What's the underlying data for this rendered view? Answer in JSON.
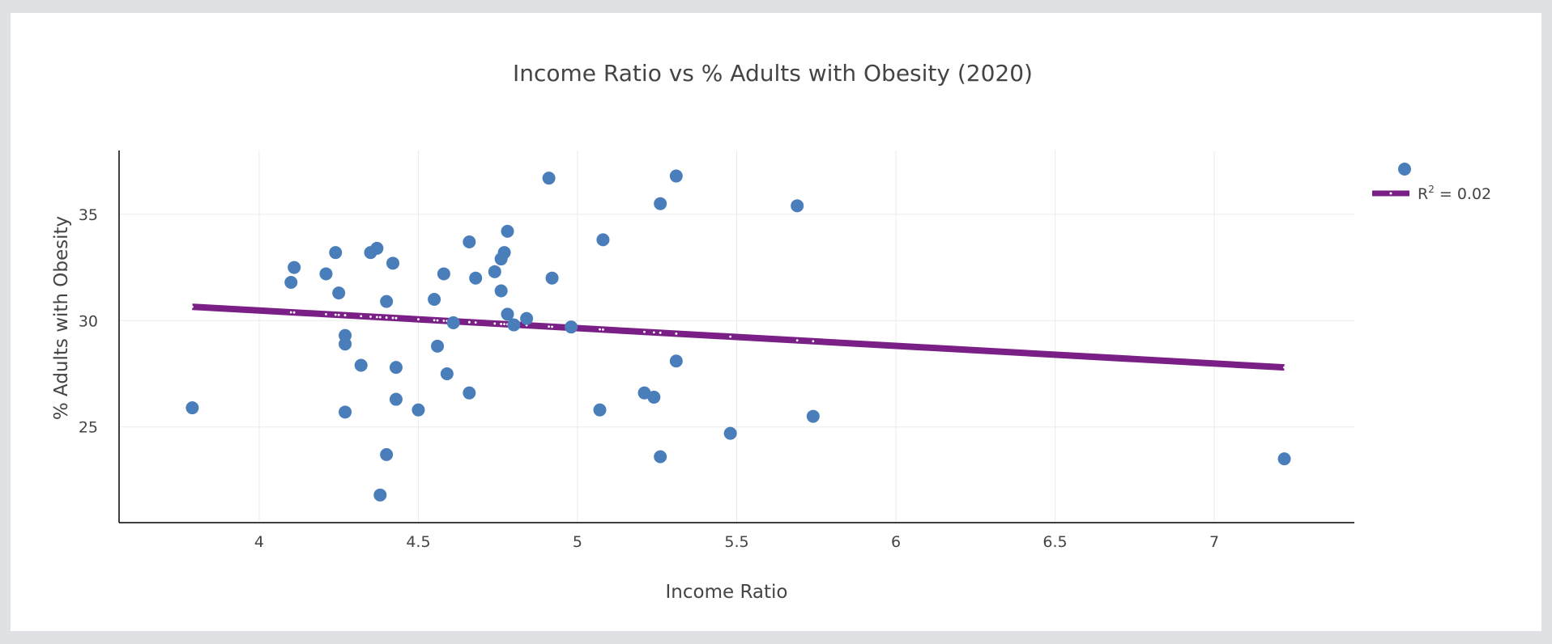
{
  "chart_data": {
    "type": "scatter",
    "title": "Income Ratio vs % Adults with Obesity (2020)",
    "xlabel": "Income Ratio",
    "ylabel": "% Adults with Obesity",
    "xlim": [
      3.56,
      7.44
    ],
    "ylim": [
      20.5,
      38.0
    ],
    "xticks": [
      "4",
      "4.5",
      "5",
      "5.5",
      "6",
      "6.5",
      "7"
    ],
    "yticks": [
      "25",
      "30",
      "35"
    ],
    "grid": true,
    "legend_position": "top-right",
    "colors": {
      "points": "#4a7ebb",
      "trendline": "#7a1f86",
      "grid": "#ebebeb",
      "axis": "#000000"
    },
    "series": [
      {
        "type": "scatter",
        "points": [
          [
            3.79,
            25.9
          ],
          [
            4.11,
            32.5
          ],
          [
            4.1,
            31.8
          ],
          [
            4.21,
            32.2
          ],
          [
            4.24,
            33.2
          ],
          [
            4.25,
            31.3
          ],
          [
            4.27,
            29.3
          ],
          [
            4.27,
            28.9
          ],
          [
            4.27,
            25.7
          ],
          [
            4.32,
            27.9
          ],
          [
            4.35,
            33.2
          ],
          [
            4.37,
            33.4
          ],
          [
            4.4,
            30.9
          ],
          [
            4.42,
            32.7
          ],
          [
            4.43,
            27.8
          ],
          [
            4.43,
            26.3
          ],
          [
            4.4,
            23.7
          ],
          [
            4.38,
            21.8
          ],
          [
            4.5,
            25.8
          ],
          [
            4.55,
            31.0
          ],
          [
            4.56,
            28.8
          ],
          [
            4.58,
            32.2
          ],
          [
            4.59,
            27.5
          ],
          [
            4.61,
            29.9
          ],
          [
            4.66,
            33.7
          ],
          [
            4.66,
            26.6
          ],
          [
            4.68,
            32.0
          ],
          [
            4.74,
            32.3
          ],
          [
            4.76,
            31.4
          ],
          [
            4.76,
            32.9
          ],
          [
            4.77,
            33.2
          ],
          [
            4.78,
            34.2
          ],
          [
            4.78,
            30.3
          ],
          [
            4.8,
            29.8
          ],
          [
            4.84,
            30.1
          ],
          [
            4.91,
            36.7
          ],
          [
            4.92,
            32.0
          ],
          [
            4.98,
            29.7
          ],
          [
            5.07,
            25.8
          ],
          [
            5.08,
            33.8
          ],
          [
            5.21,
            26.6
          ],
          [
            5.24,
            26.4
          ],
          [
            5.26,
            35.5
          ],
          [
            5.26,
            23.6
          ],
          [
            5.31,
            36.8
          ],
          [
            5.31,
            28.1
          ],
          [
            5.48,
            24.7
          ],
          [
            5.69,
            35.4
          ],
          [
            5.74,
            25.5
          ],
          [
            7.22,
            23.5
          ]
        ]
      },
      {
        "type": "line",
        "name": "R² = 0.02",
        "x": [
          3.79,
          7.22
        ],
        "y": [
          30.65,
          27.8
        ]
      }
    ],
    "legend": {
      "trend_prefix": "R",
      "trend_sup": "2",
      "trend_suffix": " = 0.02"
    }
  }
}
